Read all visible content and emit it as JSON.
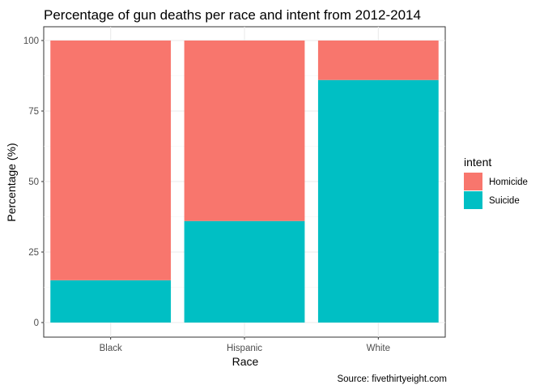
{
  "chart_data": {
    "type": "bar",
    "stacked": true,
    "percent_scale": true,
    "title": "Percentage of gun deaths per race and intent from 2012-2014",
    "xlabel": "Race",
    "ylabel": "Percentage (%)",
    "caption": "Source: fivethirtyeight.com",
    "categories": [
      "Black",
      "Hispanic",
      "White"
    ],
    "series": [
      {
        "name": "Suicide",
        "color": "#00BFC4",
        "values": [
          15,
          36,
          86
        ]
      },
      {
        "name": "Homicide",
        "color": "#F8766D",
        "values": [
          85,
          64,
          14
        ]
      }
    ],
    "ylim": [
      0,
      100
    ],
    "yticks": [
      0,
      25,
      50,
      75,
      100
    ],
    "ytick_labels": [
      "0",
      "25",
      "50",
      "75",
      "100"
    ],
    "grid": true,
    "legend": {
      "title": "intent",
      "position": "right",
      "items": [
        {
          "label": "Homicide",
          "color": "#F8766D"
        },
        {
          "label": "Suicide",
          "color": "#00BFC4"
        }
      ]
    }
  }
}
